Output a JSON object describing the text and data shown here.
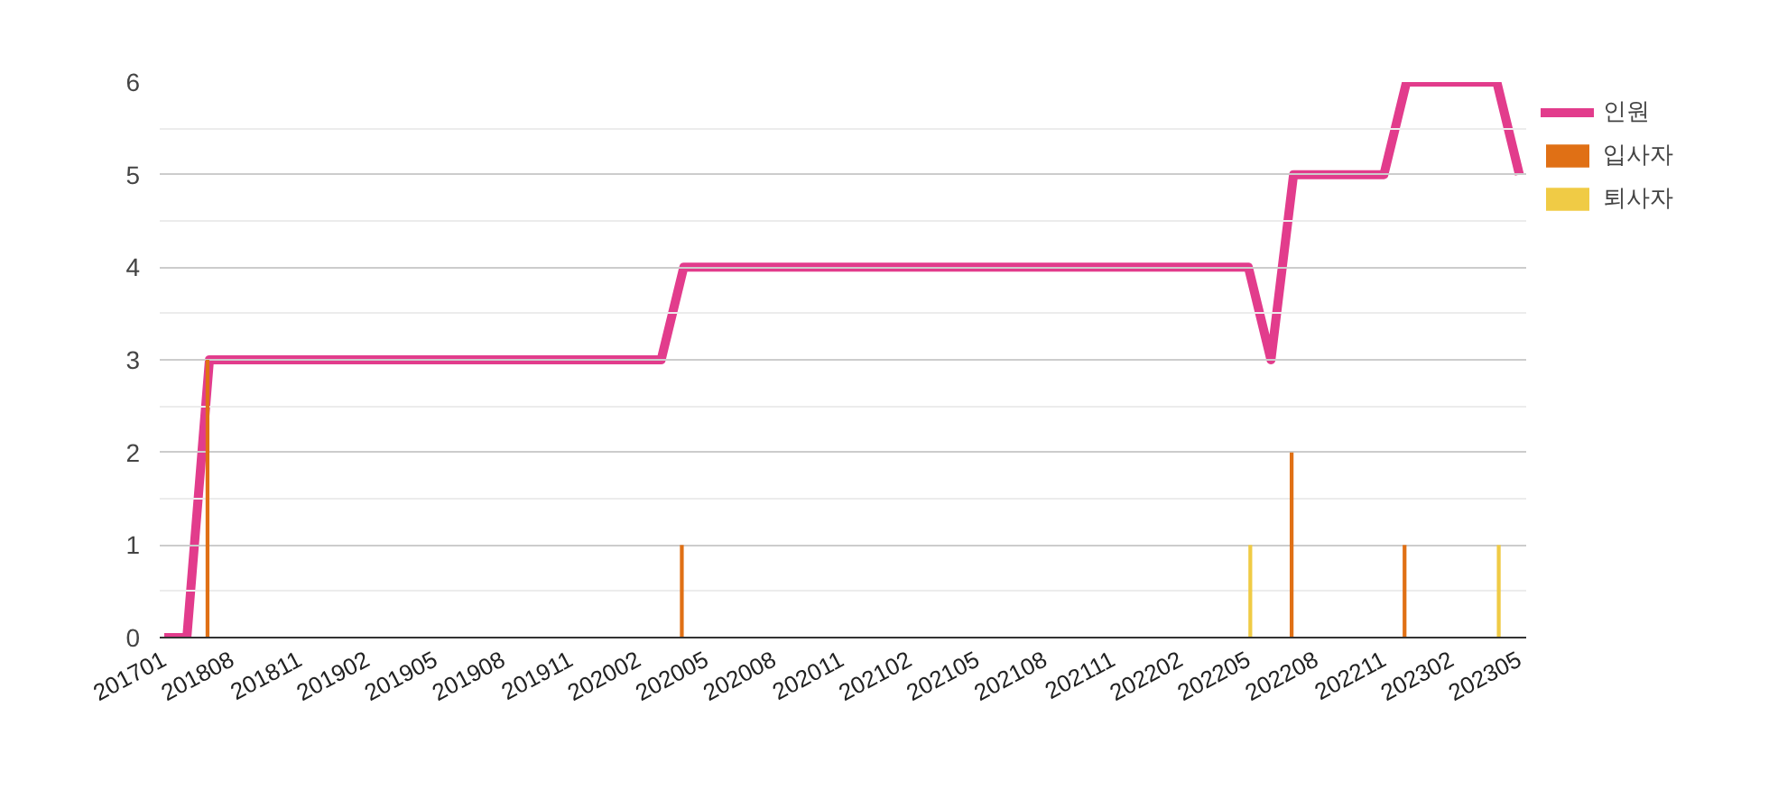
{
  "chart_data": {
    "type": "bar",
    "categories": [
      "201701",
      null,
      null,
      "201808",
      null,
      null,
      "201811",
      null,
      null,
      "201902",
      null,
      null,
      "201905",
      null,
      null,
      "201908",
      null,
      null,
      "201911",
      null,
      null,
      "202002",
      null,
      null,
      "202005",
      null,
      null,
      "202008",
      null,
      null,
      "202011",
      null,
      null,
      "202102",
      null,
      null,
      "202105",
      null,
      null,
      "202108",
      null,
      null,
      "202111",
      null,
      null,
      "202202",
      null,
      null,
      "202205",
      null,
      null,
      "202208",
      null,
      null,
      "202211",
      null,
      null,
      "202302",
      null,
      null,
      "202305"
    ],
    "series": [
      {
        "name": "인원",
        "type": "line",
        "color": "#e23c8c",
        "values": [
          0,
          0,
          3,
          3,
          3,
          3,
          3,
          3,
          3,
          3,
          3,
          3,
          3,
          3,
          3,
          3,
          3,
          3,
          3,
          3,
          3,
          3,
          3,
          4,
          4,
          4,
          4,
          4,
          4,
          4,
          4,
          4,
          4,
          4,
          4,
          4,
          4,
          4,
          4,
          4,
          4,
          4,
          4,
          4,
          4,
          4,
          4,
          4,
          4,
          3,
          5,
          5,
          5,
          5,
          5,
          6,
          6,
          6,
          6,
          6,
          5
        ]
      },
      {
        "name": "입사자",
        "color": "#e07015",
        "values": [
          0,
          0,
          3,
          0,
          0,
          0,
          0,
          0,
          0,
          0,
          0,
          0,
          0,
          0,
          0,
          0,
          0,
          0,
          0,
          0,
          0,
          0,
          0,
          1,
          0,
          0,
          0,
          0,
          0,
          0,
          0,
          0,
          0,
          0,
          0,
          0,
          0,
          0,
          0,
          0,
          0,
          0,
          0,
          0,
          0,
          0,
          0,
          0,
          0,
          0,
          2,
          0,
          0,
          0,
          0,
          1,
          0,
          0,
          0,
          0,
          0
        ]
      },
      {
        "name": "퇴사자",
        "color": "#f0cb45",
        "values": [
          0,
          0,
          0,
          0,
          0,
          0,
          0,
          0,
          0,
          0,
          0,
          0,
          0,
          0,
          0,
          0,
          0,
          0,
          0,
          0,
          0,
          0,
          0,
          0,
          0,
          0,
          0,
          0,
          0,
          0,
          0,
          0,
          0,
          0,
          0,
          0,
          0,
          0,
          0,
          0,
          0,
          0,
          0,
          0,
          0,
          0,
          0,
          0,
          1,
          0,
          0,
          0,
          0,
          0,
          0,
          0,
          0,
          0,
          0,
          1,
          0
        ]
      }
    ],
    "ylim": [
      0,
      6
    ],
    "yticks": [
      0,
      1,
      2,
      3,
      4,
      5,
      6
    ],
    "grid": "y",
    "legend": "top right"
  }
}
